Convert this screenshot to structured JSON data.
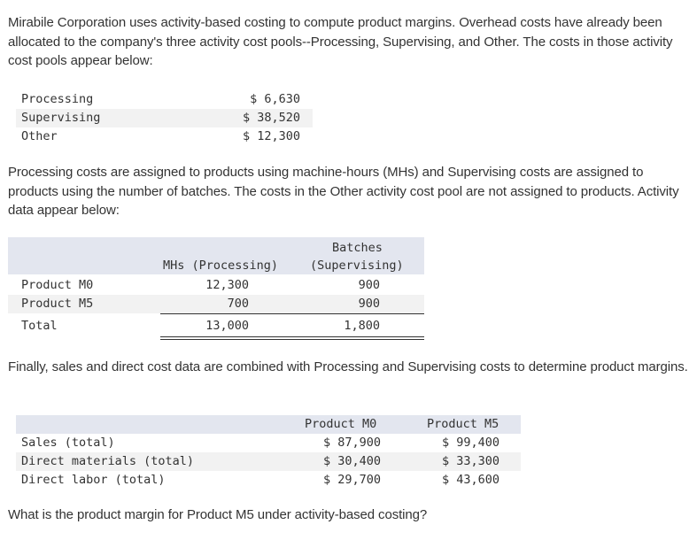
{
  "intro": "Mirabile Corporation uses activity-based costing to compute product margins. Overhead costs have already been allocated to the company's three activity cost pools--Processing, Supervising, and Other. The costs in those activity cost pools appear below:",
  "cost_pools": [
    {
      "label": "Processing",
      "value": "$ 6,630"
    },
    {
      "label": "Supervising",
      "value": "$ 38,520"
    },
    {
      "label": "Other",
      "value": "$ 12,300"
    }
  ],
  "para2": "Processing costs are assigned to products using machine-hours (MHs) and Supervising costs are assigned to products using the number of batches. The costs in the Other activity cost pool are not assigned to products. Activity data appear below:",
  "activity": {
    "col1_header": "MHs (Processing)",
    "col2_header_line1": "Batches",
    "col2_header_line2": "(Supervising)",
    "rows": [
      {
        "label": "Product M0",
        "mhs": "12,300",
        "batches": "900"
      },
      {
        "label": "Product M5",
        "mhs": "700",
        "batches": "900"
      }
    ],
    "total": {
      "label": "Total",
      "mhs": "13,000",
      "batches": "1,800"
    }
  },
  "para3": "Finally, sales and direct cost data are combined with Processing and Supervising costs to determine product margins.",
  "sales": {
    "col1_header": "Product M0",
    "col2_header": "Product M5",
    "rows": [
      {
        "label": "Sales (total)",
        "m0": "$ 87,900",
        "m5": "$ 99,400"
      },
      {
        "label": "Direct materials (total)",
        "m0": "$ 30,400",
        "m5": "$ 33,300"
      },
      {
        "label": "Direct labor (total)",
        "m0": "$ 29,700",
        "m5": "$ 43,600"
      }
    ]
  },
  "question": "What is the product margin for Product M5 under activity-based costing?"
}
